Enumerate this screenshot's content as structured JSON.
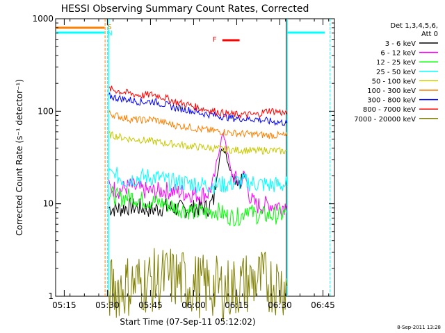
{
  "chart_data": {
    "type": "line",
    "title": "HESSI Observing Summary Count Rates, Corrected",
    "xlabel": "Start Time (07-Sep-11 05:12:02)",
    "ylabel": "Corrected Count Rate (s⁻¹ detector⁻¹)",
    "yscale": "log",
    "ylim": [
      1,
      1000
    ],
    "xlim_minutes": [
      0,
      97
    ],
    "x_ticks": [
      {
        "minute": 3,
        "label": "05:15"
      },
      {
        "minute": 18,
        "label": "05:30"
      },
      {
        "minute": 33,
        "label": "05:45"
      },
      {
        "minute": 48,
        "label": "06:00"
      },
      {
        "minute": 63,
        "label": "06:15"
      },
      {
        "minute": 78,
        "label": "06:30"
      },
      {
        "minute": 93,
        "label": "06:45"
      }
    ],
    "y_ticks": [
      {
        "value": 1,
        "label": "1"
      },
      {
        "value": 10,
        "label": "10"
      },
      {
        "value": 100,
        "label": "100"
      },
      {
        "value": 1000,
        "label": "1000"
      }
    ],
    "legend": {
      "header_line1": "Det 1,3,4,5,6,",
      "header_line2": "Att 0",
      "position": "right"
    },
    "series": [
      {
        "name": "3 - 6 keV",
        "color": "#000000",
        "segments": [
          [
            [
              18.5,
              9
            ],
            [
              22,
              8.8
            ],
            [
              26,
              9.3
            ],
            [
              30,
              9
            ],
            [
              34,
              8.6
            ],
            [
              38,
              9.2
            ],
            [
              42,
              8.9
            ],
            [
              46,
              8.7
            ],
            [
              50,
              9.1
            ],
            [
              53,
              9
            ],
            [
              55,
              11
            ],
            [
              56,
              20
            ],
            [
              57,
              30
            ],
            [
              58,
              40
            ],
            [
              59,
              38
            ],
            [
              60,
              28
            ],
            [
              61,
              22
            ],
            [
              62,
              20
            ],
            [
              63,
              19
            ],
            [
              64,
              18
            ],
            [
              65,
              19
            ],
            [
              66,
              21
            ]
          ]
        ]
      },
      {
        "name": "6 - 12 keV",
        "color": "#ff00ff",
        "segments": [
          [
            [
              18.5,
              15
            ],
            [
              22,
              14
            ],
            [
              26,
              15.5
            ],
            [
              30,
              14
            ],
            [
              34,
              13.5
            ],
            [
              38,
              14
            ],
            [
              42,
              13.5
            ],
            [
              46,
              13
            ],
            [
              50,
              12.5
            ],
            [
              53,
              13
            ],
            [
              55,
              17
            ],
            [
              56,
              28
            ],
            [
              57,
              40
            ],
            [
              58,
              55
            ],
            [
              59,
              50
            ],
            [
              60,
              32
            ],
            [
              61,
              22
            ],
            [
              62,
              19
            ],
            [
              63,
              18
            ],
            [
              64,
              17
            ],
            [
              65,
              19
            ],
            [
              66,
              20
            ],
            [
              67,
              14
            ],
            [
              68,
              11
            ],
            [
              70,
              9.5
            ],
            [
              74,
              9.8
            ],
            [
              78,
              9.5
            ],
            [
              80.5,
              9.5
            ]
          ]
        ]
      },
      {
        "name": "12 - 25 keV",
        "color": "#00ff00",
        "segments": [
          [
            [
              18.5,
              13
            ],
            [
              22,
              11.5
            ],
            [
              26,
              12
            ],
            [
              30,
              11
            ],
            [
              34,
              10.5
            ],
            [
              38,
              10
            ],
            [
              42,
              9
            ],
            [
              46,
              8.5
            ],
            [
              50,
              8
            ],
            [
              53,
              8
            ],
            [
              55,
              8.5
            ],
            [
              57,
              8.2
            ],
            [
              59,
              7.5
            ],
            [
              61,
              7.2
            ],
            [
              63,
              7.2
            ],
            [
              65,
              7.5
            ],
            [
              66,
              9
            ],
            [
              67,
              9
            ],
            [
              68,
              8
            ],
            [
              70,
              7.5
            ],
            [
              74,
              7.5
            ],
            [
              78,
              7.5
            ],
            [
              80.5,
              8
            ]
          ]
        ]
      },
      {
        "name": "25 - 50 keV",
        "color": "#00ffff",
        "segments": [
          [
            [
              18.5,
              23
            ],
            [
              20,
              21
            ],
            [
              24,
              18
            ],
            [
              28,
              19
            ],
            [
              32,
              19.5
            ],
            [
              36,
              19
            ],
            [
              40,
              17
            ],
            [
              44,
              17
            ],
            [
              48,
              16.5
            ],
            [
              52,
              16
            ],
            [
              55,
              16
            ],
            [
              58,
              16
            ],
            [
              61,
              16.5
            ],
            [
              63,
              17
            ],
            [
              65,
              17.5
            ],
            [
              67,
              17
            ],
            [
              70,
              16.5
            ],
            [
              74,
              16
            ],
            [
              78,
              16
            ],
            [
              80.5,
              16
            ]
          ]
        ]
      },
      {
        "name": "50 - 100 keV",
        "color": "#c8c800",
        "segments": [
          [
            [
              18.5,
              56
            ],
            [
              22,
              53
            ],
            [
              26,
              50
            ],
            [
              30,
              49
            ],
            [
              34,
              47
            ],
            [
              38,
              45
            ],
            [
              42,
              44
            ],
            [
              46,
              42
            ],
            [
              50,
              41
            ],
            [
              54,
              40
            ],
            [
              58,
              39
            ],
            [
              62,
              38
            ],
            [
              66,
              38
            ],
            [
              70,
              37
            ],
            [
              74,
              38
            ],
            [
              78,
              37
            ],
            [
              80.5,
              37
            ]
          ]
        ]
      },
      {
        "name": "100 - 300 keV",
        "color": "#ff8000",
        "segments": [
          [
            [
              18.5,
              95
            ],
            [
              22,
              88
            ],
            [
              26,
              82
            ],
            [
              30,
              80
            ],
            [
              34,
              82
            ],
            [
              38,
              75
            ],
            [
              42,
              70
            ],
            [
              46,
              68
            ],
            [
              50,
              64
            ],
            [
              54,
              62
            ],
            [
              58,
              60
            ],
            [
              62,
              58
            ],
            [
              66,
              57
            ],
            [
              70,
              56
            ],
            [
              74,
              55
            ],
            [
              78,
              55
            ],
            [
              80.5,
              54
            ]
          ]
        ]
      },
      {
        "name": "300 - 800 keV",
        "color": "#0000ff",
        "segments": [
          [
            [
              18.5,
              145
            ],
            [
              22,
              138
            ],
            [
              26,
              132
            ],
            [
              30,
              126
            ],
            [
              34,
              128
            ],
            [
              38,
              118
            ],
            [
              42,
              108
            ],
            [
              46,
              104
            ],
            [
              50,
              96
            ],
            [
              54,
              92
            ],
            [
              58,
              88
            ],
            [
              62,
              84
            ],
            [
              66,
              83
            ],
            [
              70,
              82
            ],
            [
              74,
              78
            ],
            [
              78,
              76
            ],
            [
              80.5,
              75
            ]
          ]
        ]
      },
      {
        "name": "800 - 7000 keV",
        "color": "#ff0000",
        "segments": [
          [
            [
              18.5,
              175
            ],
            [
              22,
              165
            ],
            [
              26,
              155
            ],
            [
              30,
              148
            ],
            [
              34,
              152
            ],
            [
              38,
              140
            ],
            [
              42,
              125
            ],
            [
              46,
              118
            ],
            [
              50,
              108
            ],
            [
              54,
              102
            ],
            [
              58,
              96
            ],
            [
              62,
              92
            ],
            [
              66,
              92
            ],
            [
              70,
              92
            ],
            [
              74,
              102
            ],
            [
              78,
              98
            ],
            [
              80.5,
              93
            ]
          ]
        ]
      },
      {
        "name": "7000 - 20000 keV",
        "color": "#808000",
        "segments": [
          [
            [
              18.5,
              1.2
            ],
            [
              30,
              1.4
            ],
            [
              40,
              1.6
            ],
            [
              50,
              1.3
            ],
            [
              60,
              1.2
            ],
            [
              70,
              1.5
            ],
            [
              80.5,
              1.3
            ]
          ]
        ]
      }
    ],
    "annotations": [
      {
        "label": "S",
        "color": "#ff8000",
        "minute": 17
      },
      {
        "label": "N",
        "color": "#00ffff",
        "minute": 17
      },
      {
        "label": "F",
        "color": "#ff0000",
        "minute": 57
      }
    ],
    "timestamp": "8-Sep-2011 13:28"
  }
}
